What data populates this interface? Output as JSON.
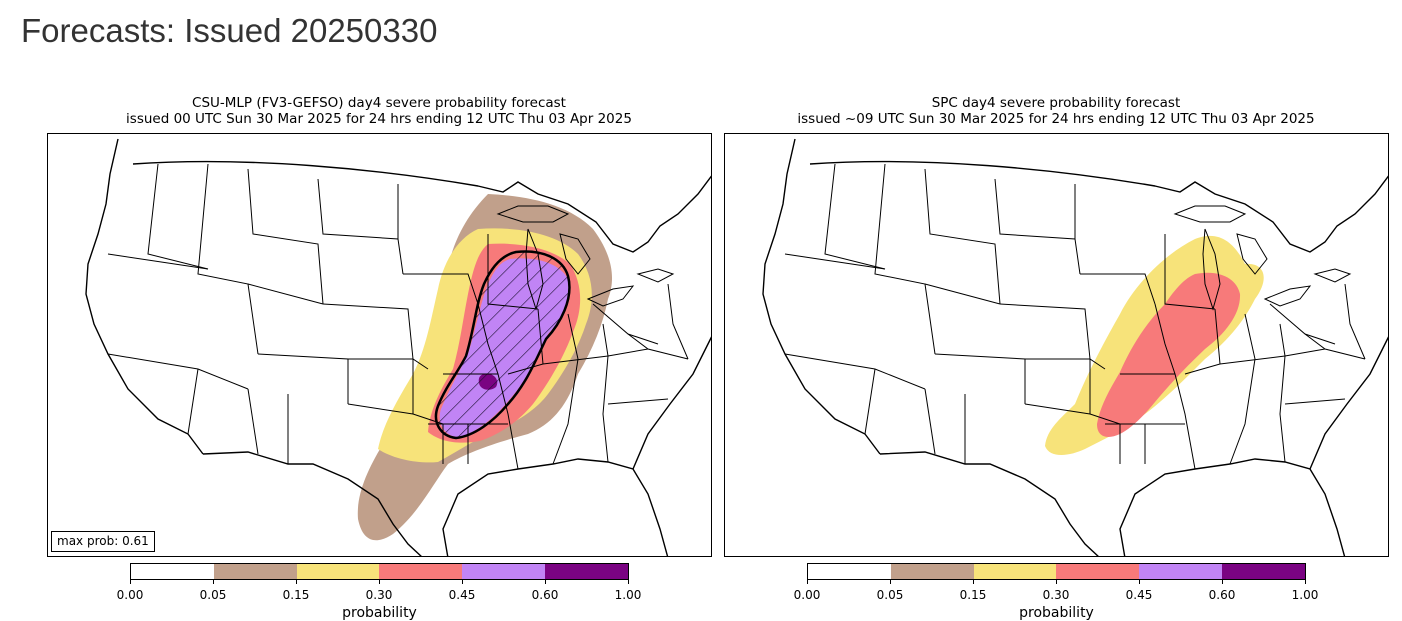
{
  "page": {
    "title": "Forecasts: Issued 20250330"
  },
  "colors": {
    "p005": "#c1a08b",
    "p015": "#f7e37a",
    "p030": "#f77a7a",
    "p045": "#c184f5",
    "p060": "#7a0382",
    "land_lines": "#000000"
  },
  "colorbar": {
    "label": "probability",
    "ticks": [
      "0.00",
      "0.05",
      "0.15",
      "0.30",
      "0.45",
      "0.60",
      "1.00"
    ],
    "segment_colors": [
      "#ffffff",
      "#c1a08b",
      "#f7e37a",
      "#f77a7a",
      "#c184f5",
      "#7a0382"
    ]
  },
  "panels": [
    {
      "title_line1": "CSU-MLP (FV3-GEFSO) day4 severe probability forecast",
      "title_line2": "issued 00 UTC Sun 30 Mar 2025 for 24 hrs ending 12 UTC Thu 03 Apr 2025",
      "max_prob_text": "max prob: 0.61",
      "hatched_region": "significant severe contour"
    },
    {
      "title_line1": "SPC day4 severe probability forecast",
      "title_line2": "issued ~09 UTC Sun 30 Mar 2025 for 24 hrs ending 12 UTC Thu 03 Apr 2025"
    }
  ]
}
